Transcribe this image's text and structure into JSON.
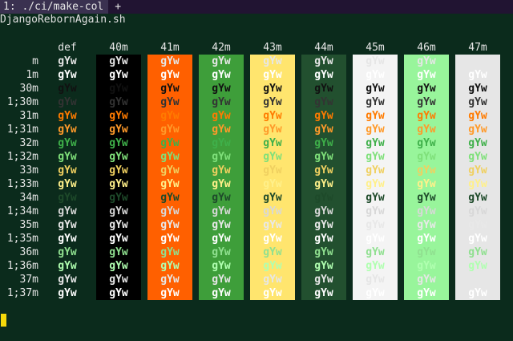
{
  "tab": {
    "label": "1: ./ci/make-col",
    "add": "+"
  },
  "title": "DjangoRebornAgain.sh",
  "sample": "gYw",
  "headers": [
    "def",
    "40m",
    "41m",
    "42m",
    "43m",
    "44m",
    "45m",
    "46m",
    "47m"
  ],
  "backgrounds": {
    "40m": "#000000",
    "41m": "#ff6000",
    "42m": "#3e9e3a",
    "43m": "#ffe56e",
    "44m": "#22502f",
    "45m": "#f4f4f4",
    "46m": "#98f59b",
    "47m": "#e6e6e6"
  },
  "rows": [
    {
      "label": "m",
      "color": "#e6e6e6"
    },
    {
      "label": "1m",
      "color": "#ffffff"
    },
    {
      "label": "30m",
      "color": "#111111"
    },
    {
      "label": "1;30m",
      "color": "#333333"
    },
    {
      "label": "31m",
      "color": "#ff7b00"
    },
    {
      "label": "1;31m",
      "color": "#ff9a2a"
    },
    {
      "label": "32m",
      "color": "#3fb04a"
    },
    {
      "label": "1;32m",
      "color": "#7fe07a"
    },
    {
      "label": "33m",
      "color": "#f0d060"
    },
    {
      "label": "1;33m",
      "color": "#fff08a"
    },
    {
      "label": "34m",
      "color": "#1e4a2a"
    },
    {
      "label": "1;34m",
      "color": "#d8d8d8"
    },
    {
      "label": "35m",
      "color": "#e8e8e8"
    },
    {
      "label": "1;35m",
      "color": "#ffffff"
    },
    {
      "label": "36m",
      "color": "#90e090"
    },
    {
      "label": "1;36m",
      "color": "#b0ffb0"
    },
    {
      "label": "37m",
      "color": "#e6e6e6"
    },
    {
      "label": "1;37m",
      "color": "#ffffff"
    }
  ]
}
